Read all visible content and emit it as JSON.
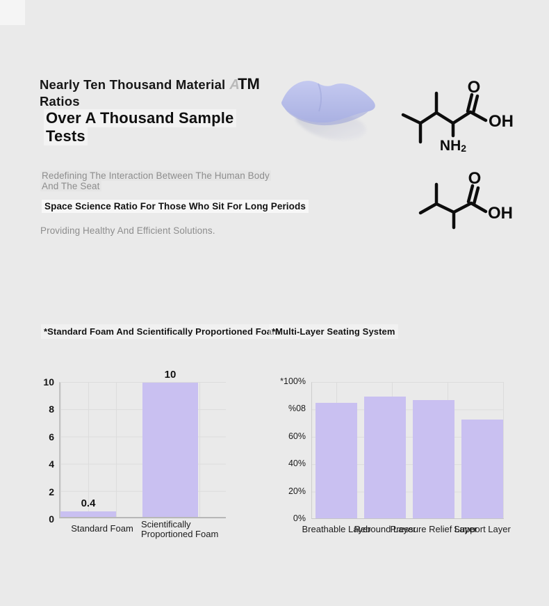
{
  "page": {
    "background": "#eaeaea"
  },
  "header": {
    "title_line1": "Nearly Ten Thousand Material",
    "trademark_ghost": "A",
    "trademark": "TM",
    "title_line2": "Ratios",
    "subtitle_line1": "Over A Thousand Sample",
    "subtitle_line2": "Tests"
  },
  "intro": {
    "body_line1": "Redefining The Interaction Between The Human Body",
    "body_line2": "And The Seat",
    "highlight_line": "Space Science Ratio For Those Who Sit For Long Periods",
    "closing_line": "Providing Healthy And Efficient Solutions."
  },
  "molecules": {
    "mol1": {
      "o_label": "O",
      "oh_label": "OH",
      "nh2_main": "NH",
      "nh2_sub": "2"
    },
    "mol2": {
      "o_label": "O",
      "oh_label": "OH"
    }
  },
  "chart_data": [
    {
      "type": "bar",
      "title": "*Standard Foam And Scientifically Proportioned Foam",
      "categories": [
        "Standard Foam",
        "Scientifically Proportioned Foam"
      ],
      "category_lines": [
        [
          "Standard Foam"
        ],
        [
          "Scientifically",
          "Proportioned Foam"
        ]
      ],
      "values": [
        0.4,
        10
      ],
      "data_labels": [
        "0.4",
        "10"
      ],
      "y_ticks": [
        "10",
        "8",
        "6",
        "4",
        "2",
        "0"
      ],
      "xlabel": "",
      "ylabel": "",
      "ylim": [
        0,
        10
      ],
      "grid": true,
      "legend": false,
      "bar_color": "#c9c0f1"
    },
    {
      "type": "bar",
      "title": "*Multi-Layer Seating System",
      "categories": [
        "Breathable Layer",
        "Rebound Layer",
        "Pressure Relief Layer",
        "Support Layer"
      ],
      "values": [
        85,
        90,
        87,
        73
      ],
      "y_ticks": [
        "*100%",
        "%08",
        "60%",
        "40%",
        "20%",
        "0%"
      ],
      "xlabel": "",
      "ylabel": "",
      "ylim": [
        0,
        100
      ],
      "grid": true,
      "legend": false,
      "bar_color": "#c9c0f1"
    }
  ]
}
